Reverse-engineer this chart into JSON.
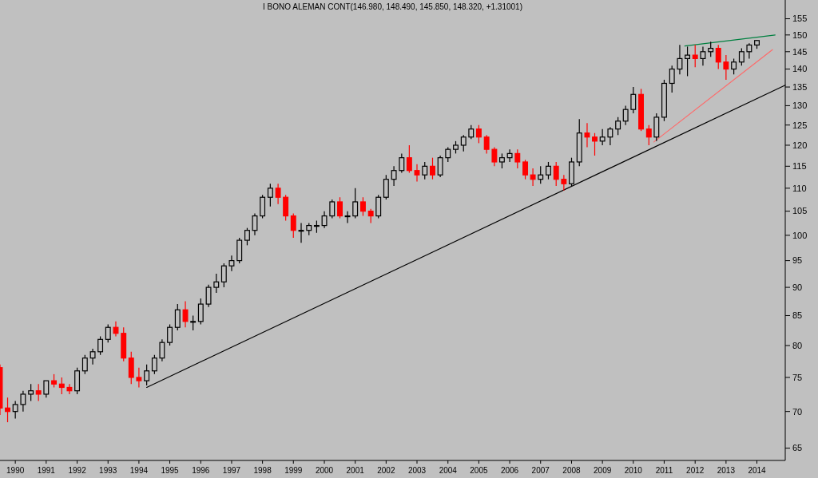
{
  "chart_data": {
    "type": "candlestick",
    "title": "I BONO ALEMAN CONT(146.980, 148.490, 145.850, 148.320, +1.31001)",
    "x": [
      "1990-01",
      "1990-04",
      "1990-07",
      "1990-10",
      "1991-01",
      "1991-04",
      "1991-07",
      "1991-10",
      "1992-01",
      "1992-04",
      "1992-07",
      "1992-10",
      "1993-01",
      "1993-04",
      "1993-07",
      "1993-10",
      "1994-01",
      "1994-04",
      "1994-07",
      "1994-10",
      "1995-01",
      "1995-04",
      "1995-07",
      "1995-10",
      "1996-01",
      "1996-04",
      "1996-07",
      "1996-10",
      "1997-01",
      "1997-04",
      "1997-07",
      "1997-10",
      "1998-01",
      "1998-04",
      "1998-07",
      "1998-10",
      "1999-01",
      "1999-04",
      "1999-07",
      "1999-10",
      "2000-01",
      "2000-04",
      "2000-07",
      "2000-10",
      "2001-01",
      "2001-04",
      "2001-07",
      "2001-10",
      "2002-01",
      "2002-04",
      "2002-07",
      "2002-10",
      "2003-01",
      "2003-04",
      "2003-07",
      "2003-10",
      "2004-01",
      "2004-04",
      "2004-07",
      "2004-10",
      "2005-01",
      "2005-04",
      "2005-07",
      "2005-10",
      "2006-01",
      "2006-04",
      "2006-07",
      "2006-10",
      "2007-01",
      "2007-04",
      "2007-07",
      "2007-10",
      "2008-01",
      "2008-04",
      "2008-07",
      "2008-10",
      "2009-01",
      "2009-04",
      "2009-07",
      "2009-10",
      "2010-01",
      "2010-04",
      "2010-07",
      "2010-10",
      "2011-01",
      "2011-04",
      "2011-07",
      "2011-10",
      "2012-01",
      "2012-04",
      "2012-07",
      "2012-10",
      "2013-01",
      "2013-04",
      "2013-07",
      "2013-10",
      "2014-01",
      "2014-04",
      "2014-07"
    ],
    "ohlc": [
      [
        76.5,
        77,
        69.5,
        70.5
      ],
      [
        70.5,
        72,
        68.5,
        70
      ],
      [
        70,
        71.5,
        69,
        71
      ],
      [
        71,
        73,
        70,
        72.5
      ],
      [
        72.5,
        74,
        71.5,
        73
      ],
      [
        73,
        74,
        71.5,
        72.5
      ],
      [
        72.5,
        74.5,
        72,
        74.5
      ],
      [
        74.5,
        75.5,
        73.5,
        74
      ],
      [
        74,
        75,
        72.5,
        73.5
      ],
      [
        73.5,
        74,
        72.5,
        73
      ],
      [
        73,
        76.5,
        72.5,
        76
      ],
      [
        76,
        78.5,
        75.5,
        78
      ],
      [
        78,
        79.5,
        77,
        79
      ],
      [
        79,
        81.5,
        78.5,
        81
      ],
      [
        81,
        83.5,
        80.5,
        83
      ],
      [
        83,
        84,
        81.5,
        82
      ],
      [
        82,
        83,
        77.5,
        78
      ],
      [
        78,
        79,
        74,
        75
      ],
      [
        75,
        76.5,
        73.5,
        74.5
      ],
      [
        74.5,
        77,
        73.8,
        76
      ],
      [
        76,
        78.5,
        75.5,
        78
      ],
      [
        78,
        81,
        77.5,
        80.5
      ],
      [
        80.5,
        83.5,
        80,
        83
      ],
      [
        83,
        87,
        82.5,
        86
      ],
      [
        86,
        87.5,
        83,
        84
      ],
      [
        84,
        85,
        82.5,
        84
      ],
      [
        84,
        88,
        83.5,
        87
      ],
      [
        87,
        90.5,
        86.5,
        90
      ],
      [
        90,
        92.5,
        89,
        91
      ],
      [
        91,
        94.5,
        90,
        94
      ],
      [
        94,
        96,
        93,
        95
      ],
      [
        95,
        99.5,
        94.5,
        99
      ],
      [
        99,
        101.5,
        98,
        101
      ],
      [
        101,
        104.5,
        100,
        104
      ],
      [
        104,
        108.5,
        103.5,
        108
      ],
      [
        108,
        111,
        106,
        110
      ],
      [
        110,
        111,
        106.5,
        108
      ],
      [
        108,
        108.5,
        103,
        104
      ],
      [
        104,
        104.5,
        99.5,
        101
      ],
      [
        101,
        102.5,
        98.5,
        101
      ],
      [
        101,
        102.5,
        100,
        102
      ],
      [
        102,
        103,
        100.5,
        102
      ],
      [
        102,
        105,
        101.5,
        104
      ],
      [
        104,
        107.5,
        103.5,
        107
      ],
      [
        107,
        108,
        103.5,
        104
      ],
      [
        104,
        105,
        102.5,
        104
      ],
      [
        104,
        110,
        103.5,
        107
      ],
      [
        107,
        108,
        104,
        105
      ],
      [
        105,
        105.5,
        102.5,
        104
      ],
      [
        104,
        108.5,
        103.5,
        108
      ],
      [
        108,
        113,
        107.5,
        112
      ],
      [
        112,
        115,
        110.5,
        114
      ],
      [
        114,
        118,
        113.5,
        117
      ],
      [
        117,
        120,
        113.5,
        114
      ],
      [
        114,
        115.5,
        111.5,
        113
      ],
      [
        113,
        116,
        112,
        115
      ],
      [
        115,
        117,
        112,
        113
      ],
      [
        113,
        117.5,
        112.5,
        117
      ],
      [
        117,
        119.5,
        116,
        119
      ],
      [
        119,
        121,
        118,
        120
      ],
      [
        120,
        122.5,
        118.5,
        122
      ],
      [
        122,
        125,
        121.5,
        124
      ],
      [
        124,
        125,
        120.5,
        122
      ],
      [
        122,
        122.5,
        118,
        119
      ],
      [
        119,
        119.5,
        115,
        116
      ],
      [
        116,
        118,
        114.5,
        117
      ],
      [
        117,
        119,
        116,
        118
      ],
      [
        118,
        119,
        114.5,
        116
      ],
      [
        116,
        116.5,
        112,
        113
      ],
      [
        113,
        114.5,
        110.5,
        112
      ],
      [
        112,
        115,
        111,
        113
      ],
      [
        113,
        116,
        112,
        115
      ],
      [
        115,
        116,
        110.5,
        112
      ],
      [
        112,
        113,
        109.5,
        111
      ],
      [
        111,
        117,
        110.5,
        116
      ],
      [
        116,
        126.5,
        115,
        123
      ],
      [
        123,
        125.5,
        119.5,
        122
      ],
      [
        122,
        123,
        117.5,
        121
      ],
      [
        121,
        124,
        120,
        122
      ],
      [
        122,
        124.5,
        120,
        124
      ],
      [
        124,
        127,
        122.5,
        126
      ],
      [
        126,
        130,
        125,
        129
      ],
      [
        129,
        135,
        128,
        133
      ],
      [
        133,
        134.5,
        123.5,
        124
      ],
      [
        124,
        125,
        120,
        122
      ],
      [
        122,
        128,
        121,
        127
      ],
      [
        127,
        137,
        126,
        136
      ],
      [
        136,
        141,
        133.5,
        140
      ],
      [
        140,
        147,
        138.5,
        143
      ],
      [
        143,
        146.5,
        138,
        144
      ],
      [
        144,
        147,
        140.5,
        143
      ],
      [
        143,
        146.5,
        141,
        145
      ],
      [
        145,
        148,
        143.5,
        146
      ],
      [
        146,
        147,
        140,
        142
      ],
      [
        142,
        144,
        137,
        140
      ],
      [
        140,
        143,
        138.5,
        142
      ],
      [
        142,
        146,
        141,
        145
      ],
      [
        145,
        147.5,
        143,
        146.98
      ],
      [
        146.98,
        148.49,
        145.85,
        148.32
      ]
    ],
    "series": [
      {
        "type": "line",
        "color": "#000000",
        "x": [
          "1994-10",
          "2015-06"
        ],
        "values": [
          73.5,
          135.5
        ]
      },
      {
        "type": "line",
        "color": "#ff6a6a",
        "x": [
          "2011-03",
          "2015-01"
        ],
        "values": [
          120.8,
          145.6
        ]
      },
      {
        "type": "line",
        "color": "#008040",
        "x": [
          "2012-03",
          "2015-02"
        ],
        "values": [
          146.7,
          150
        ]
      }
    ],
    "log": "y",
    "xlim": [
      "1990-01",
      "2015-06"
    ],
    "xticks": [
      {
        "value": "1990-07",
        "label": "1990"
      },
      {
        "value": "1991-07",
        "label": "1991"
      },
      {
        "value": "1992-07",
        "label": "1992"
      },
      {
        "value": "1993-07",
        "label": "1993"
      },
      {
        "value": "1994-07",
        "label": "1994"
      },
      {
        "value": "1995-07",
        "label": "1995"
      },
      {
        "value": "1996-07",
        "label": "1996"
      },
      {
        "value": "1997-07",
        "label": "1997"
      },
      {
        "value": "1998-07",
        "label": "1998"
      },
      {
        "value": "1999-07",
        "label": "1999"
      },
      {
        "value": "2000-07",
        "label": "2000"
      },
      {
        "value": "2001-07",
        "label": "2001"
      },
      {
        "value": "2002-07",
        "label": "2002"
      },
      {
        "value": "2003-07",
        "label": "2003"
      },
      {
        "value": "2004-07",
        "label": "2004"
      },
      {
        "value": "2005-07",
        "label": "2005"
      },
      {
        "value": "2006-07",
        "label": "2006"
      },
      {
        "value": "2007-07",
        "label": "2007"
      },
      {
        "value": "2008-07",
        "label": "2008"
      },
      {
        "value": "2009-07",
        "label": "2009"
      },
      {
        "value": "2010-07",
        "label": "2010"
      },
      {
        "value": "2011-07",
        "label": "2011"
      },
      {
        "value": "2012-07",
        "label": "2012"
      },
      {
        "value": "2013-07",
        "label": "2013"
      },
      {
        "value": "2014-07",
        "label": "2014"
      }
    ],
    "ylim": [
      63.4,
      161
    ],
    "yticks": [
      65,
      70,
      75,
      80,
      85,
      90,
      95,
      100,
      105,
      110,
      115,
      120,
      125,
      130,
      135,
      140,
      145,
      150,
      155
    ]
  }
}
